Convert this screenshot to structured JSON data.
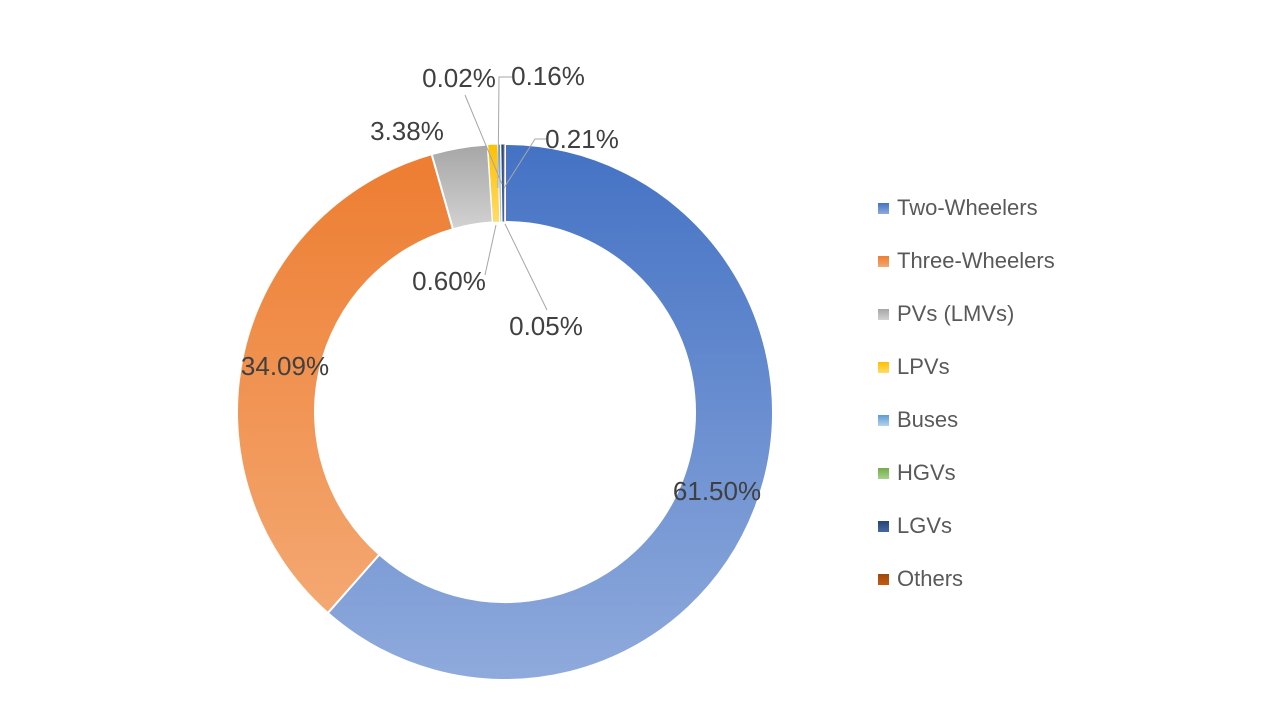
{
  "chart_data": {
    "type": "doughnut",
    "title": "",
    "categories": [
      "Two-Wheelers",
      "Three-Wheelers",
      "PVs (LMVs)",
      "LPVs",
      "Buses",
      "HGVs",
      "LGVs",
      "Others"
    ],
    "values": [
      61.5,
      34.09,
      3.38,
      0.6,
      0.16,
      0.02,
      0.21,
      0.05
    ],
    "labels": [
      "61.50%",
      "34.09%",
      "3.38%",
      "0.60%",
      "0.16%",
      "0.02%",
      "0.21%",
      "0.05%"
    ],
    "colors": [
      "#4472C4",
      "#ED7D31",
      "#A6A6A6",
      "#FFC000",
      "#5B9BD5",
      "#70AD47",
      "#264478",
      "#9E480E"
    ],
    "colors_light": [
      "#8FAADC",
      "#F4A872",
      "#D2D2D2",
      "#FFDB69",
      "#B4D2EC",
      "#A9D18E",
      "#4668A2",
      "#C55A11"
    ],
    "label_color": "#404040",
    "leader_line_color": "#A6A6A6",
    "slice_border_color": "#FFFFFF",
    "background": "#FFFFFF",
    "legend_position": "right",
    "legend_text_color": "#595959",
    "hole_ratio": 0.71,
    "start_angle_deg": 0,
    "direction": "clockwise"
  }
}
